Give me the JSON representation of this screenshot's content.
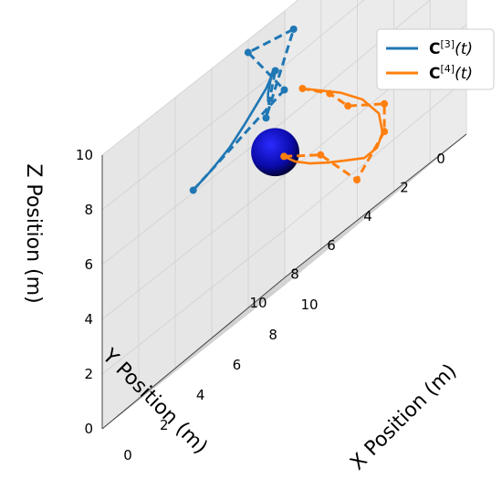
{
  "chart_data": {
    "type": "line",
    "projection": "3d",
    "title": "",
    "xlabel": "X Position (m)",
    "ylabel": "Y Position (m)",
    "zlabel": "Z Position (m)",
    "xlim": [
      0,
      10
    ],
    "ylim": [
      0,
      10
    ],
    "zlim": [
      0,
      10
    ],
    "xticks": [
      "0",
      "2",
      "4",
      "6",
      "8",
      "10"
    ],
    "yticks": [
      "0",
      "2",
      "4",
      "6",
      "8",
      "10"
    ],
    "zticks": [
      "0",
      "2",
      "4",
      "6",
      "8",
      "10"
    ],
    "grid": true,
    "legend_position": "top-right",
    "obstacle": {
      "shape": "sphere",
      "center": [
        4.5,
        5,
        5
      ],
      "radius": 1.1,
      "color": "#0a0aa8"
    },
    "series": [
      {
        "name": "C[3](t)",
        "name_base": "C",
        "name_sup": "[3]",
        "name_arg": "(t)",
        "color": "#1f77b4",
        "curve": [
          [
            3.5,
            8.5,
            6
          ],
          [
            3.7,
            7.7,
            6.2
          ],
          [
            3.9,
            6.9,
            6.5
          ],
          [
            4.0,
            6.2,
            6.9
          ],
          [
            4.1,
            5.6,
            7.3
          ],
          [
            4.0,
            5.0,
            7.6
          ],
          [
            3.8,
            4.5,
            7.9
          ],
          [
            3.5,
            4.1,
            8.1
          ],
          [
            3.2,
            3.8,
            8.1
          ],
          [
            3.0,
            3.7,
            8.0
          ],
          [
            2.9,
            3.7,
            7.7
          ],
          [
            3.0,
            3.9,
            7.4
          ],
          [
            3.3,
            4.2,
            7.1
          ]
        ],
        "control_points": [
          [
            3.5,
            8.5,
            6
          ],
          [
            5,
            5,
            7
          ],
          [
            1.5,
            3.5,
            9.5
          ],
          [
            3,
            2.5,
            9
          ],
          [
            5,
            6,
            6.5
          ],
          [
            3.5,
            4,
            8
          ]
        ]
      },
      {
        "name": "C[4](t)",
        "name_base": "C",
        "name_sup": "[4]",
        "name_arg": "(t)",
        "color": "#ff7f0e",
        "curve": [
          [
            8,
            8,
            4.5
          ],
          [
            8.1,
            7.5,
            4.0
          ],
          [
            8.2,
            6.8,
            3.5
          ],
          [
            8.4,
            6.0,
            3.0
          ],
          [
            8.7,
            5.2,
            2.5
          ],
          [
            9.0,
            4.6,
            2.1
          ],
          [
            9.3,
            4.2,
            2.1
          ],
          [
            9.4,
            4.0,
            2.5
          ],
          [
            9.2,
            4.0,
            3.3
          ],
          [
            8.6,
            4.3,
            4.3
          ],
          [
            7.8,
            4.7,
            5.2
          ],
          [
            6.8,
            5.0,
            6.0
          ],
          [
            6,
            5,
            6.5
          ]
        ],
        "control_points": [
          [
            8,
            8,
            4.5
          ],
          [
            8,
            6,
            3.5
          ],
          [
            9.5,
            5.5,
            1.5
          ],
          [
            8.5,
            3,
            2.5
          ],
          [
            9,
            3.5,
            3.5
          ],
          [
            8,
            4.5,
            4.5
          ],
          [
            7,
            4.5,
            5.5
          ],
          [
            6,
            5,
            6.5
          ]
        ]
      }
    ]
  }
}
